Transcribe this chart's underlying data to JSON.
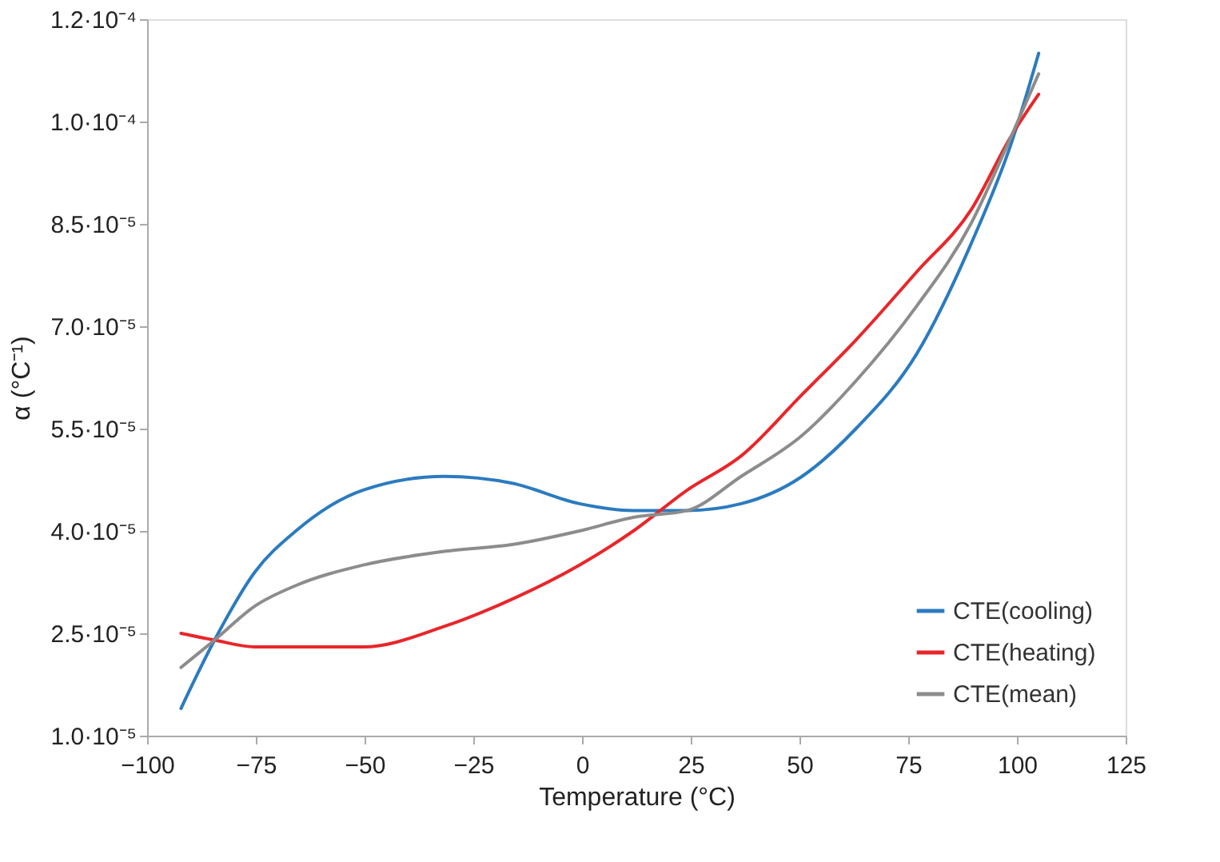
{
  "chart_data": {
    "type": "line",
    "xlabel": "Temperature  (°C)",
    "ylabel": "α (°C⁻¹)",
    "x": [
      -92.2,
      -84.5,
      -75.2,
      -65.8,
      -50.3,
      -31.7,
      -16.1,
      -0.6,
      11.8,
      24.2,
      36.6,
      50.6,
      63.0,
      77.0,
      89.4,
      98.8,
      105.0
    ],
    "series": [
      {
        "name": "CTE(cooling)",
        "color": "#2b7bbf",
        "values": [
          1.4e-05,
          2.4e-05,
          3.4e-05,
          4e-05,
          4.6e-05,
          4.8e-05,
          4.7e-05,
          4.4e-05,
          4.3e-05,
          4.3e-05,
          4.4e-05,
          4.8e-05,
          5.5e-05,
          6.6e-05,
          8.2e-05,
          9.7e-05,
          0.00011
        ]
      },
      {
        "name": "CTE(heating)",
        "color": "#e8262a",
        "values": [
          2.5e-05,
          2.4e-05,
          2.3e-05,
          2.3e-05,
          2.3e-05,
          2.6e-05,
          3e-05,
          3.5e-05,
          4e-05,
          4.6e-05,
          5.1e-05,
          6e-05,
          6.8e-05,
          7.8e-05,
          8.7e-05,
          9.8e-05,
          0.000104
        ]
      },
      {
        "name": "CTE(mean)",
        "color": "#8c8c8c",
        "values": [
          2e-05,
          2.4e-05,
          2.9e-05,
          3.2e-05,
          3.5e-05,
          3.7e-05,
          3.8e-05,
          4e-05,
          4.2e-05,
          4.3e-05,
          4.8e-05,
          5.4e-05,
          6.2e-05,
          7.3e-05,
          8.5e-05,
          9.8e-05,
          0.000107
        ]
      }
    ],
    "xlim": [
      -100,
      125
    ],
    "xticks": [
      -100,
      -75,
      -50,
      -25,
      0,
      25,
      50,
      75,
      100,
      125
    ],
    "ylim": [
      1e-05,
      0.000115
    ],
    "yticks": [
      {
        "value": 1e-05,
        "label": "1.0·10⁻⁵"
      },
      {
        "value": 2.5e-05,
        "label": "2.5·10⁻⁵"
      },
      {
        "value": 4e-05,
        "label": "4.0·10⁻⁵"
      },
      {
        "value": 5.5e-05,
        "label": "5.5·10⁻⁵"
      },
      {
        "value": 7e-05,
        "label": "7.0·10⁻⁵"
      },
      {
        "value": 8.5e-05,
        "label": "8.5·10⁻⁵"
      },
      {
        "value": 0.0001,
        "label": "1.0·10⁻⁴"
      },
      {
        "value": 0.000115,
        "label": "1.2·10⁻⁴"
      }
    ],
    "grid": false,
    "legend": "bottom right",
    "marker": "none",
    "line_style": "solid"
  }
}
